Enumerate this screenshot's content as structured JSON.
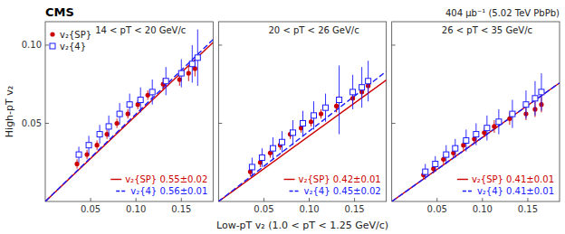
{
  "chart_data": [
    {
      "type": "scatter",
      "title": "14 < pT < 20 GeV/c",
      "ylabel": "High-pT v₂",
      "xlim": [
        0.0,
        0.185
      ],
      "ylim": [
        0.0,
        0.115
      ],
      "xticks": [
        0.05,
        {
          "value": 0.1,
          "label": "0.10"
        },
        0.15
      ],
      "yticks": [
        0.05,
        {
          "value": 0.1,
          "label": "0.10"
        }
      ],
      "legend": "upper left",
      "annotations": [
        {
          "text": "CMS"
        },
        {
          "text": "v₂{SP} 0.55±0.02",
          "color": "#cc0000",
          "line_style": "solid"
        },
        {
          "text": "v₂{4} 0.56±0.01",
          "color": "#1a1aff",
          "line_style": "dashed"
        }
      ],
      "series": [
        {
          "type": "line",
          "color": "#cc0000",
          "line_style": "solid",
          "x": [
            0.0,
            0.185
          ],
          "values": [
            0.0,
            0.10175
          ]
        },
        {
          "type": "line",
          "color": "#1a1aff",
          "line_style": "dashed",
          "x": [
            0.0,
            0.185
          ],
          "values": [
            0.0,
            0.1036
          ]
        },
        {
          "name": "v₂{SP}",
          "type": "scatter",
          "color": "#cc0000",
          "marker": "circle",
          "x": [
            0.035,
            0.046,
            0.057,
            0.068,
            0.079,
            0.091,
            0.102,
            0.113,
            0.13,
            0.148,
            0.158,
            0.165
          ],
          "values": [
            0.024,
            0.03,
            0.036,
            0.043,
            0.05,
            0.056,
            0.062,
            0.068,
            0.075,
            0.078,
            0.082,
            0.085
          ],
          "errors": [
            0.003,
            0.003,
            0.003,
            0.003,
            0.003,
            0.003,
            0.003,
            0.003,
            0.004,
            0.004,
            0.005,
            0.005
          ]
        },
        {
          "name": "v₂{4}",
          "type": "scatter",
          "color": "#1a1aff",
          "marker": "open-square",
          "x": [
            0.037,
            0.048,
            0.06,
            0.07,
            0.082,
            0.093,
            0.105,
            0.118,
            0.133,
            0.15,
            0.162,
            0.168
          ],
          "values": [
            0.03,
            0.036,
            0.043,
            0.048,
            0.056,
            0.062,
            0.065,
            0.07,
            0.077,
            0.082,
            0.088,
            0.092
          ],
          "errors": [
            0.005,
            0.006,
            0.006,
            0.007,
            0.007,
            0.007,
            0.008,
            0.008,
            0.009,
            0.009,
            0.012,
            0.018
          ]
        }
      ]
    },
    {
      "type": "scatter",
      "title": "20 < pT < 26 GeV/c",
      "xlabel": "Low-pT v₂ (1.0 < pT < 1.25 GeV/c)",
      "xlim": [
        0.0,
        0.185
      ],
      "ylim": [
        0.0,
        0.115
      ],
      "xticks": [
        0.05,
        {
          "value": 0.1,
          "label": "0.10"
        },
        0.15
      ],
      "yticks": [
        0.05,
        {
          "value": 0.1,
          "label": "0.10"
        }
      ],
      "tick_labels": "x",
      "annotations": [
        {
          "text": "v₂{SP} 0.42±0.01",
          "color": "#cc0000",
          "line_style": "solid"
        },
        {
          "text": "v₂{4} 0.45±0.02",
          "color": "#1a1aff",
          "line_style": "dashed"
        }
      ],
      "series": [
        {
          "type": "line",
          "color": "#cc0000",
          "line_style": "solid",
          "x": [
            0.0,
            0.185
          ],
          "values": [
            0.0,
            0.0777
          ]
        },
        {
          "type": "line",
          "color": "#1a1aff",
          "line_style": "dashed",
          "x": [
            0.0,
            0.185
          ],
          "values": [
            0.0,
            0.08325
          ]
        },
        {
          "type": "scatter",
          "color": "#cc0000",
          "marker": "circle",
          "x": [
            0.035,
            0.046,
            0.057,
            0.068,
            0.079,
            0.091,
            0.102,
            0.113,
            0.13,
            0.148,
            0.158,
            0.165
          ],
          "values": [
            0.019,
            0.025,
            0.031,
            0.036,
            0.043,
            0.047,
            0.051,
            0.056,
            0.061,
            0.066,
            0.07,
            0.074
          ],
          "errors": [
            0.003,
            0.003,
            0.003,
            0.003,
            0.003,
            0.003,
            0.003,
            0.003,
            0.004,
            0.004,
            0.004,
            0.004
          ]
        },
        {
          "type": "scatter",
          "color": "#1a1aff",
          "marker": "open-square",
          "x": [
            0.037,
            0.048,
            0.06,
            0.07,
            0.082,
            0.093,
            0.105,
            0.118,
            0.133,
            0.148,
            0.158,
            0.165
          ],
          "values": [
            0.022,
            0.028,
            0.034,
            0.038,
            0.044,
            0.05,
            0.055,
            0.06,
            0.065,
            0.07,
            0.073,
            0.077
          ],
          "errors": [
            0.006,
            0.006,
            0.007,
            0.007,
            0.008,
            0.008,
            0.009,
            0.009,
            0.022,
            0.011,
            0.013,
            0.013
          ]
        }
      ]
    },
    {
      "type": "scatter",
      "title": "26 < pT < 35 GeV/c",
      "xlim": [
        0.0,
        0.185
      ],
      "ylim": [
        0.0,
        0.115
      ],
      "xticks": [
        0.05,
        {
          "value": 0.1,
          "label": "0.10"
        },
        0.15
      ],
      "yticks": [
        0.05,
        {
          "value": 0.1,
          "label": "0.10"
        }
      ],
      "tick_labels": "x",
      "annotations": [
        {
          "text": "404 μb⁻¹ (5.02 TeV PbPb)"
        },
        {
          "text": "v₂{SP} 0.41±0.01",
          "color": "#cc0000",
          "line_style": "solid"
        },
        {
          "text": "v₂{4} 0.41±0.01",
          "color": "#1a1aff",
          "line_style": "dashed"
        }
      ],
      "series": [
        {
          "type": "line",
          "color": "#cc0000",
          "line_style": "solid",
          "x": [
            0.0,
            0.185
          ],
          "values": [
            0.0,
            0.07585
          ]
        },
        {
          "type": "line",
          "color": "#1a1aff",
          "line_style": "dashed",
          "x": [
            0.0,
            0.185
          ],
          "values": [
            0.0,
            0.07585
          ]
        },
        {
          "type": "scatter",
          "color": "#cc0000",
          "marker": "circle",
          "x": [
            0.035,
            0.046,
            0.057,
            0.068,
            0.079,
            0.091,
            0.102,
            0.113,
            0.13,
            0.148,
            0.158,
            0.165
          ],
          "values": [
            0.017,
            0.021,
            0.027,
            0.031,
            0.036,
            0.04,
            0.044,
            0.048,
            0.053,
            0.056,
            0.059,
            0.062
          ],
          "errors": [
            0.003,
            0.003,
            0.003,
            0.003,
            0.003,
            0.003,
            0.003,
            0.004,
            0.004,
            0.004,
            0.005,
            0.005
          ]
        },
        {
          "type": "scatter",
          "color": "#1a1aff",
          "marker": "open-square",
          "x": [
            0.037,
            0.048,
            0.06,
            0.07,
            0.082,
            0.093,
            0.105,
            0.118,
            0.133,
            0.148,
            0.158,
            0.165
          ],
          "values": [
            0.019,
            0.024,
            0.03,
            0.034,
            0.039,
            0.043,
            0.047,
            0.051,
            0.056,
            0.062,
            0.066,
            0.07
          ],
          "errors": [
            0.005,
            0.005,
            0.006,
            0.006,
            0.007,
            0.007,
            0.008,
            0.008,
            0.009,
            0.009,
            0.011,
            0.012
          ]
        }
      ]
    }
  ]
}
